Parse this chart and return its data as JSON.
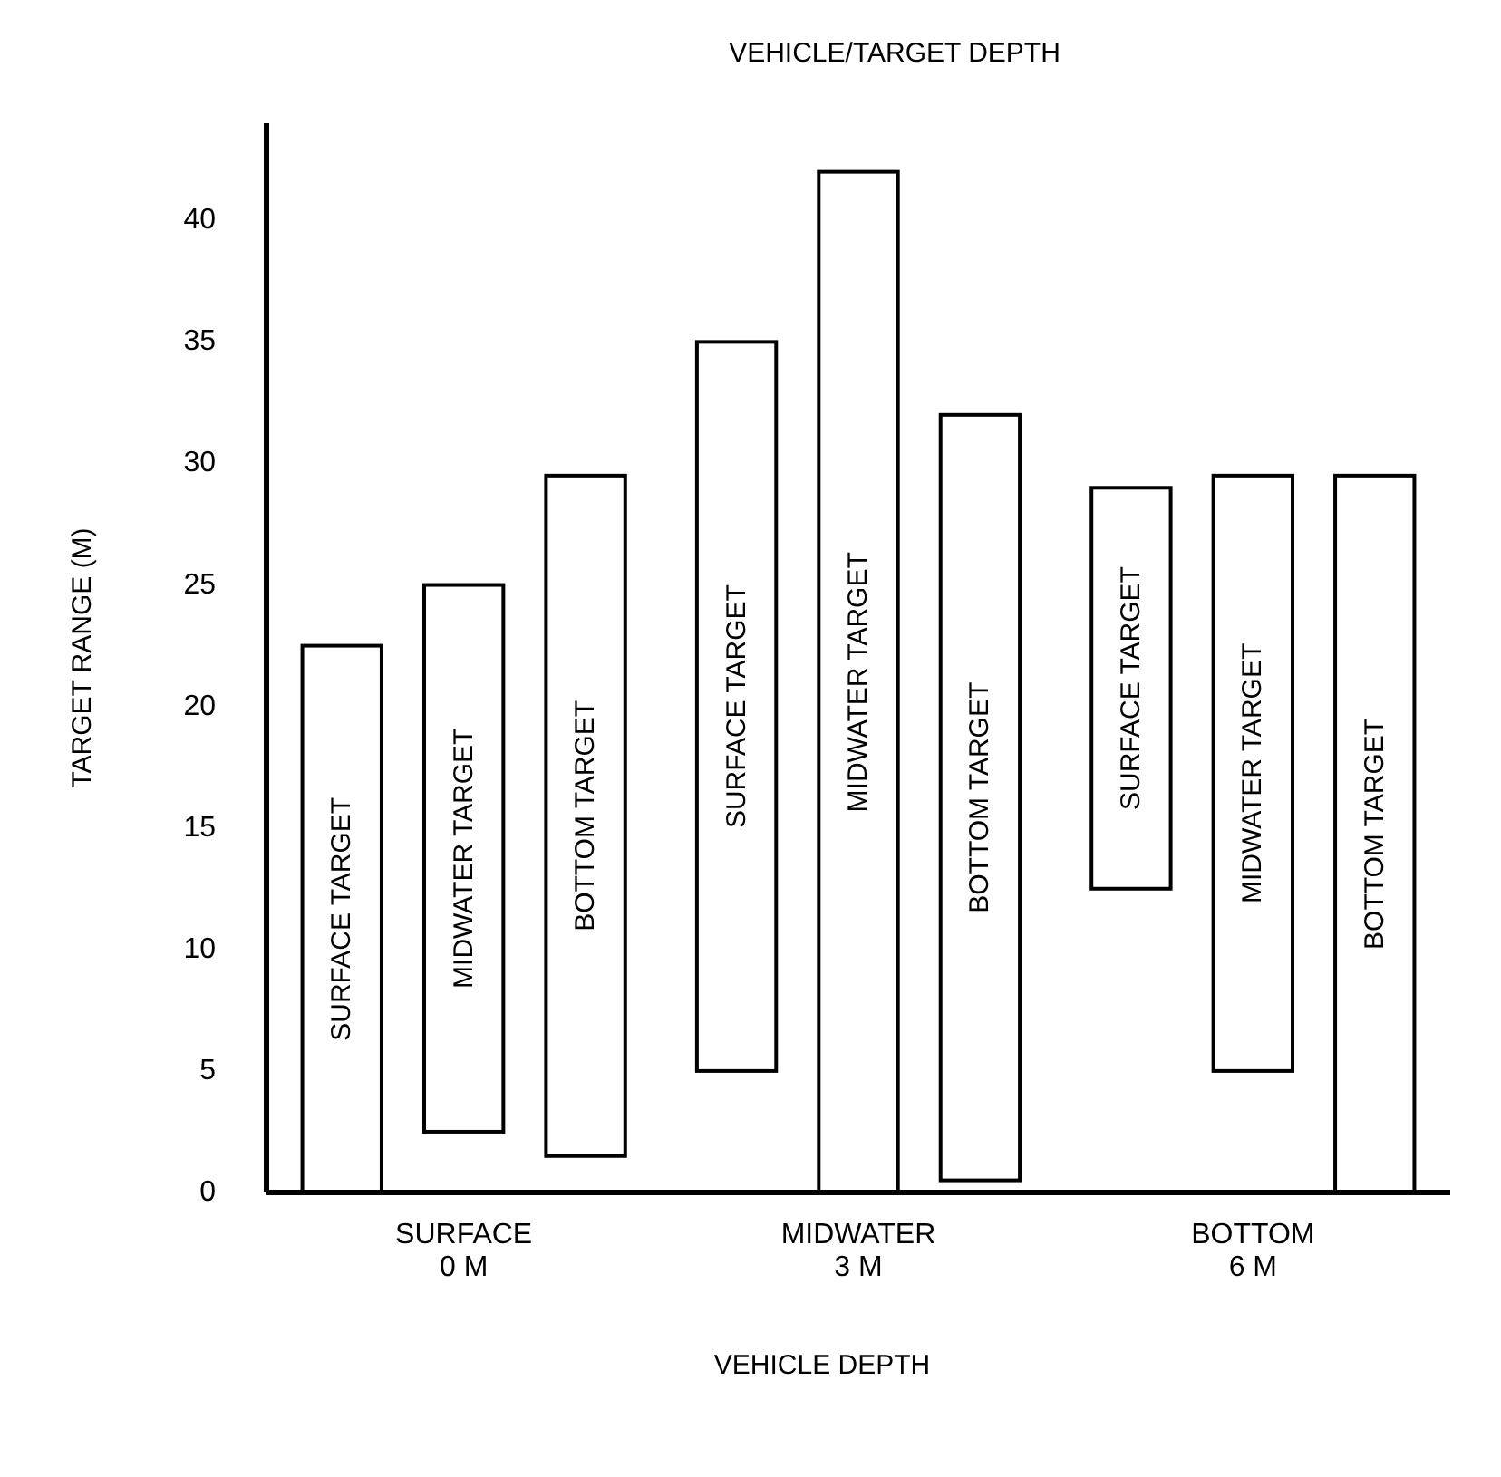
{
  "chart_data": {
    "type": "bar",
    "title": "VEHICLE/TARGET DEPTH",
    "xlabel": "VEHICLE DEPTH",
    "ylabel": "TARGET RANGE (M)",
    "categories": [
      "SURFACE\n0 M",
      "MIDWATER\n3 M",
      "BOTTOM\n6 M"
    ],
    "ylim": [
      0,
      44
    ],
    "yticks": [
      0,
      5,
      10,
      15,
      20,
      25,
      30,
      35,
      40
    ],
    "grid": false,
    "legend": false,
    "series": [
      {
        "name": "SURFACE TARGET",
        "color": "#ffffff",
        "base": [
          0,
          5,
          12.5
        ],
        "values": [
          22.5,
          30,
          16.5
        ]
      },
      {
        "name": "MIDWATER TARGET",
        "color": "#ffffff",
        "base": [
          2.5,
          0,
          5
        ],
        "values": [
          22.5,
          42,
          24.5
        ]
      },
      {
        "name": "BOTTOM TARGET",
        "color": "#ffffff",
        "base": [
          1.5,
          0.5,
          0
        ],
        "values": [
          28,
          31.5,
          29.5
        ]
      }
    ]
  }
}
